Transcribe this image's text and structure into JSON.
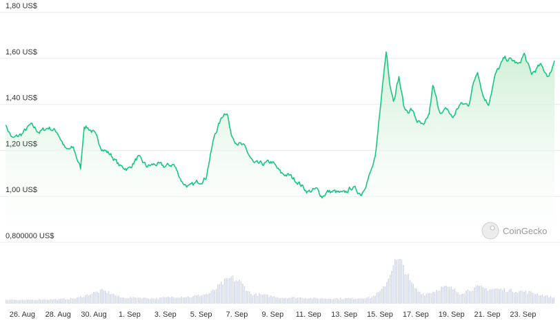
{
  "chart_data": {
    "type": "area",
    "y_tick_labels": [
      "1,80 US$",
      "1,60 US$",
      "1,40 US$",
      "1,20 US$",
      "1,00 US$",
      "0,800000 US$"
    ],
    "y_ticks": [
      1.8,
      1.6,
      1.4,
      1.2,
      1.0,
      0.8
    ],
    "ylim": [
      0.8,
      1.8
    ],
    "x_tick_labels": [
      "26. Aug",
      "28. Aug",
      "30. Aug",
      "1. Sep",
      "3. Sep",
      "5. Sep",
      "7. Sep",
      "9. Sep",
      "11. Sep",
      "13. Sep",
      "15. Sep",
      "17. Sep",
      "19. Sep",
      "21. Sep",
      "23. Sep"
    ],
    "x_ticks": [
      0,
      2,
      4,
      6,
      8,
      10,
      12,
      14,
      16,
      18,
      20,
      22,
      24,
      26,
      28
    ],
    "xlim": [
      -0.4,
      30.3
    ],
    "grid": true,
    "series": [
      {
        "values": "price",
        "x": [
          -0.4,
          0.0,
          0.5,
          1.0,
          1.5,
          2.0,
          2.5,
          3.0,
          3.4,
          3.8,
          4.0,
          4.5,
          5.0,
          5.5,
          6.0,
          6.5,
          7.0,
          7.5,
          8.0,
          8.5,
          9.0,
          9.5,
          9.9,
          10.3,
          10.8,
          11.3,
          11.8,
          12.0,
          12.2,
          12.5,
          13.0,
          13.5,
          14.0,
          14.5,
          15.0,
          15.5,
          16.0,
          16.5,
          17.0,
          17.3,
          17.6,
          18.0,
          18.5,
          19.0,
          19.5,
          20.0,
          20.3,
          20.6,
          20.9,
          21.1,
          21.3,
          21.6,
          21.9,
          22.1,
          22.3,
          22.6,
          23.0,
          23.3,
          23.5,
          23.8,
          24.0,
          24.3,
          24.6,
          25.0,
          25.5,
          25.8,
          26.0,
          26.3,
          26.6,
          27.0,
          27.5,
          28.0,
          28.3,
          28.6,
          29.0,
          29.5,
          30.0,
          30.3
        ],
        "y": [
          1.31,
          1.25,
          1.27,
          1.31,
          1.28,
          1.3,
          1.28,
          1.2,
          1.21,
          1.12,
          1.31,
          1.28,
          1.21,
          1.18,
          1.13,
          1.12,
          1.17,
          1.13,
          1.14,
          1.13,
          1.14,
          1.06,
          1.04,
          1.06,
          1.08,
          1.27,
          1.36,
          1.37,
          1.27,
          1.24,
          1.21,
          1.14,
          1.14,
          1.15,
          1.1,
          1.09,
          1.06,
          1.02,
          1.03,
          1.0,
          1.02,
          1.02,
          1.01,
          1.04,
          1.01,
          1.1,
          1.17,
          1.42,
          1.64,
          1.49,
          1.42,
          1.52,
          1.38,
          1.37,
          1.38,
          1.33,
          1.3,
          1.36,
          1.48,
          1.39,
          1.36,
          1.38,
          1.34,
          1.4,
          1.4,
          1.5,
          1.55,
          1.44,
          1.4,
          1.53,
          1.6,
          1.59,
          1.57,
          1.62,
          1.53,
          1.57,
          1.52,
          1.59
        ]
      },
      {
        "values": "volume",
        "x": [
          -0.4,
          0.5,
          1.5,
          2.5,
          3.5,
          4.5,
          5.0,
          5.5,
          6.0,
          7.0,
          8.0,
          9.0,
          10.0,
          11.0,
          11.8,
          12.2,
          12.7,
          13.3,
          14.0,
          15.0,
          16.0,
          17.0,
          18.0,
          19.0,
          20.0,
          20.6,
          21.0,
          21.2,
          21.5,
          21.8,
          22.2,
          22.6,
          23.0,
          23.5,
          24.0,
          24.5,
          25.0,
          25.5,
          26.0,
          26.5,
          27.0,
          27.5,
          28.0,
          29.0,
          30.0,
          30.3
        ],
        "y": [
          0.1,
          0.08,
          0.1,
          0.1,
          0.12,
          0.25,
          0.3,
          0.24,
          0.14,
          0.14,
          0.12,
          0.16,
          0.16,
          0.24,
          0.5,
          0.6,
          0.5,
          0.22,
          0.2,
          0.14,
          0.14,
          0.12,
          0.12,
          0.12,
          0.14,
          0.3,
          0.6,
          0.9,
          0.98,
          0.9,
          0.5,
          0.3,
          0.22,
          0.28,
          0.38,
          0.36,
          0.24,
          0.32,
          0.38,
          0.34,
          0.34,
          0.32,
          0.3,
          0.26,
          0.16,
          0.14
        ]
      }
    ],
    "colors": {
      "line": "#16c784",
      "area_top": "#d6f3dc",
      "volume": "#d3d9e6"
    },
    "watermark": "CoinGecko"
  }
}
